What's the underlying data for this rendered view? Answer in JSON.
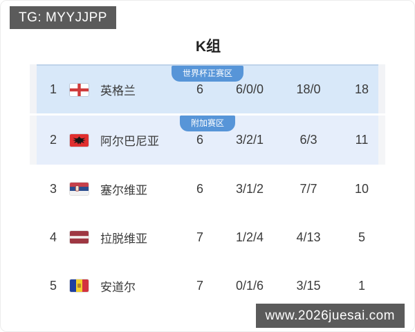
{
  "page": {
    "tg_badge": "TG: MYYJJPP",
    "title": "K组",
    "watermark": "www.2026juesai.com"
  },
  "colors": {
    "zone_badge_blue": "#5795d8",
    "qualify_row_blue": "#d8e8f9",
    "playoff_row_blue": "#e6eefb",
    "corner_badge_gray": "#5b5b5b"
  },
  "table": {
    "rows": [
      {
        "rank": "1",
        "flag": "england-flag",
        "team": "英格兰",
        "played": "6",
        "wdl": "6/0/0",
        "goals": "18/0",
        "points": "18",
        "zone": "qualify",
        "zone_label": "世界杯正赛区"
      },
      {
        "rank": "2",
        "flag": "albania-flag",
        "team": "阿尔巴尼亚",
        "played": "6",
        "wdl": "3/2/1",
        "goals": "6/3",
        "points": "11",
        "zone": "playoff",
        "zone_label": "附加赛区"
      },
      {
        "rank": "3",
        "flag": "serbia-flag",
        "team": "塞尔维亚",
        "played": "6",
        "wdl": "3/1/2",
        "goals": "7/7",
        "points": "10",
        "zone": "",
        "zone_label": ""
      },
      {
        "rank": "4",
        "flag": "latvia-flag",
        "team": "拉脱维亚",
        "played": "7",
        "wdl": "1/2/4",
        "goals": "4/13",
        "points": "5",
        "zone": "",
        "zone_label": ""
      },
      {
        "rank": "5",
        "flag": "andorra-flag",
        "team": "安道尔",
        "played": "7",
        "wdl": "0/1/6",
        "goals": "3/15",
        "points": "1",
        "zone": "",
        "zone_label": ""
      }
    ]
  }
}
